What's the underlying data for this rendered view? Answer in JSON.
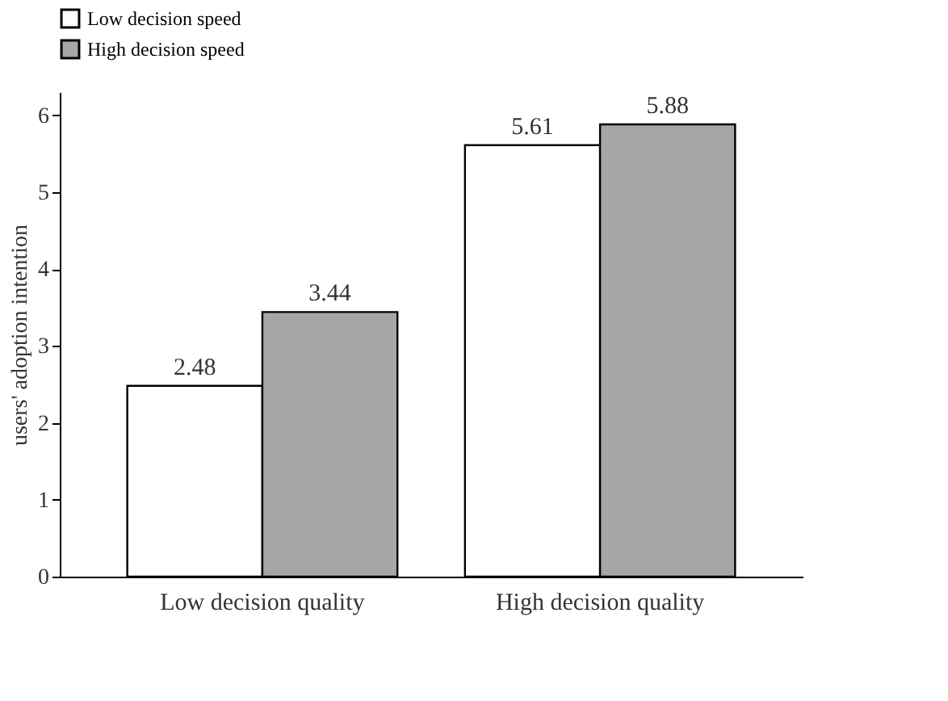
{
  "chart_data": {
    "type": "bar",
    "ylabel": "users' adoption intention",
    "categories": [
      "Low decision quality",
      "High decision quality"
    ],
    "series": [
      {
        "name": "Low decision speed",
        "color": "#ffffff",
        "values": [
          2.48,
          5.61
        ]
      },
      {
        "name": "High decision speed",
        "color": "#a6a6a6",
        "values": [
          3.44,
          5.88
        ]
      }
    ],
    "ylim": [
      0,
      6.3
    ],
    "yticks": [
      0,
      1,
      2,
      3,
      4,
      5,
      6
    ],
    "grid": false,
    "legend": "top",
    "data_labels": true
  }
}
